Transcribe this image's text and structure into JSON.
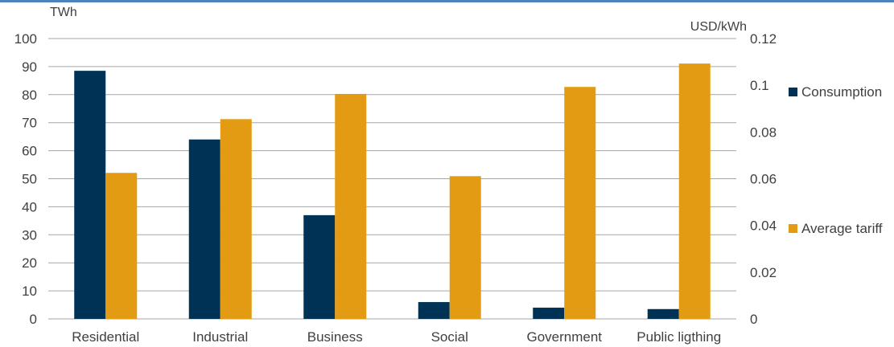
{
  "chart_data": {
    "type": "bar",
    "categories": [
      "Residential",
      "Industrial",
      "Business",
      "Social",
      "Government",
      "Public ligthing"
    ],
    "series": [
      {
        "name": "Consumption",
        "axis": "left",
        "color": "#003255",
        "values": [
          88.5,
          64.0,
          37.0,
          6.0,
          4.0,
          3.5
        ]
      },
      {
        "name": "Average tariff",
        "axis": "right",
        "color": "#e39b14",
        "values": [
          0.0625,
          0.0855,
          0.0963,
          0.0611,
          0.0993,
          0.1093
        ]
      }
    ],
    "y_left": {
      "unit": "TWh",
      "min": 0,
      "max": 100,
      "step": 10,
      "ticks": [
        "0",
        "10",
        "20",
        "30",
        "40",
        "50",
        "60",
        "70",
        "80",
        "90",
        "100"
      ]
    },
    "y_right": {
      "unit": "USD/kWh",
      "min": 0,
      "max": 0.12,
      "step": 0.02,
      "ticks": [
        "0",
        "0.02",
        "0.04",
        "0.06",
        "0.08",
        "0.1",
        "0.12"
      ]
    },
    "grid": true,
    "legend": "right"
  }
}
